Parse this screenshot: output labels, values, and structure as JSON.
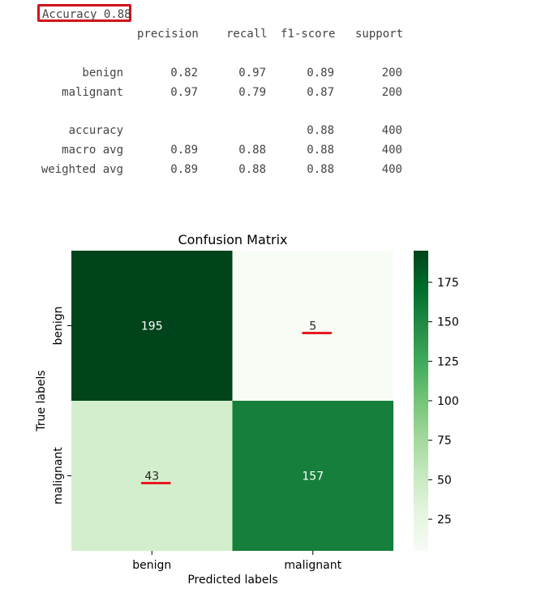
{
  "report": {
    "accuracy_label": "Accuracy 0.88",
    "headers": [
      "precision",
      "recall",
      "f1-score",
      "support"
    ],
    "rows": [
      {
        "label": "benign",
        "cells": [
          "0.82",
          "0.97",
          "0.89",
          "200"
        ]
      },
      {
        "label": "malignant",
        "cells": [
          "0.97",
          "0.79",
          "0.87",
          "200"
        ]
      },
      {
        "label": "accuracy",
        "cells": [
          "",
          "",
          "0.88",
          "400"
        ]
      },
      {
        "label": "macro avg",
        "cells": [
          "0.89",
          "0.88",
          "0.88",
          "400"
        ]
      },
      {
        "label": "weighted avg",
        "cells": [
          "0.89",
          "0.88",
          "0.88",
          "400"
        ]
      }
    ]
  },
  "chart_data": {
    "type": "heatmap",
    "title": "Confusion Matrix",
    "xlabel": "Predicted labels",
    "ylabel": "True labels",
    "x_categories": [
      "benign",
      "malignant"
    ],
    "y_categories": [
      "benign",
      "malignant"
    ],
    "values": [
      [
        195,
        5
      ],
      [
        43,
        157
      ]
    ],
    "colormap": "Greens",
    "color_range": [
      5,
      195
    ],
    "colorbar_ticks": [
      25,
      50,
      75,
      100,
      125,
      150,
      175
    ],
    "highlight_color": "#e8191f",
    "underlined_values": [
      "5",
      "43"
    ]
  }
}
